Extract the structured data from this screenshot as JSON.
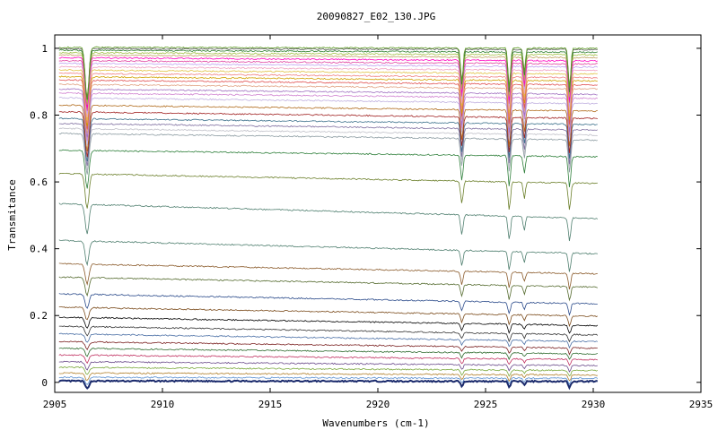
{
  "chart_data": {
    "type": "line",
    "title": "20090827_E02_130.JPG",
    "xlabel": "Wavenumbers (cm-1)",
    "ylabel": "Transmitance",
    "xlim": [
      2905,
      2935
    ],
    "ylim": [
      -0.03,
      1.04
    ],
    "x_ticks": [
      2905,
      2910,
      2915,
      2920,
      2925,
      2930,
      2935
    ],
    "y_ticks": [
      0,
      0.2,
      0.4,
      0.6,
      0.8,
      1
    ],
    "y_tick_labels": [
      "0",
      "0.2",
      "0.4",
      "0.6",
      "0.8",
      "1"
    ],
    "x_data_range": [
      2905.2,
      2930.2
    ],
    "grid": false,
    "legend": "none",
    "absorption_lines": [
      {
        "x": 2906.5,
        "width": 0.12,
        "strength": 0.15
      },
      {
        "x": 2923.9,
        "width": 0.08,
        "strength": 0.1
      },
      {
        "x": 2926.1,
        "width": 0.08,
        "strength": 0.12
      },
      {
        "x": 2926.8,
        "width": 0.07,
        "strength": 0.07
      },
      {
        "x": 2928.9,
        "width": 0.08,
        "strength": 0.12
      }
    ],
    "series": [
      {
        "color": "#1a2a6c",
        "start": 0.004,
        "end": 0.003
      },
      {
        "color": "#5a8fd0",
        "start": 0.015,
        "end": 0.012
      },
      {
        "color": "#b07f2a",
        "start": 0.028,
        "end": 0.022
      },
      {
        "color": "#7aa83c",
        "start": 0.045,
        "end": 0.035
      },
      {
        "color": "#6a4a8a",
        "start": 0.062,
        "end": 0.05
      },
      {
        "color": "#c03060",
        "start": 0.082,
        "end": 0.068
      },
      {
        "color": "#2e6b2e",
        "start": 0.102,
        "end": 0.085
      },
      {
        "color": "#7a2020",
        "start": 0.122,
        "end": 0.102
      },
      {
        "color": "#4a6fa5",
        "start": 0.145,
        "end": 0.122
      },
      {
        "color": "#333333",
        "start": 0.168,
        "end": 0.142
      },
      {
        "color": "#000000",
        "start": 0.195,
        "end": 0.17
      },
      {
        "color": "#7a4a1a",
        "start": 0.225,
        "end": 0.198
      },
      {
        "color": "#2a4a8a",
        "start": 0.265,
        "end": 0.235
      },
      {
        "color": "#556b2f",
        "start": 0.315,
        "end": 0.285
      },
      {
        "color": "#8a5a2a",
        "start": 0.355,
        "end": 0.325
      },
      {
        "color": "#4f7f6f",
        "start": 0.425,
        "end": 0.385
      },
      {
        "color": "#4f7f6f",
        "start": 0.535,
        "end": 0.49
      },
      {
        "color": "#6b7f2a",
        "start": 0.625,
        "end": 0.595
      },
      {
        "color": "#2e7f3a",
        "start": 0.695,
        "end": 0.675
      },
      {
        "color": "#8a9aa0",
        "start": 0.745,
        "end": 0.725
      },
      {
        "color": "#c0c0c8",
        "start": 0.76,
        "end": 0.74
      },
      {
        "color": "#7f6fa0",
        "start": 0.775,
        "end": 0.755
      },
      {
        "color": "#3a6f8a",
        "start": 0.79,
        "end": 0.772
      },
      {
        "color": "#a02020",
        "start": 0.81,
        "end": 0.79
      },
      {
        "color": "#b06a1a",
        "start": 0.83,
        "end": 0.812
      },
      {
        "color": "#c0b0e0",
        "start": 0.852,
        "end": 0.834
      },
      {
        "color": "#d080d0",
        "start": 0.866,
        "end": 0.85
      },
      {
        "color": "#a070c0",
        "start": 0.878,
        "end": 0.862
      },
      {
        "color": "#e0a080",
        "start": 0.892,
        "end": 0.878
      },
      {
        "color": "#e05050",
        "start": 0.905,
        "end": 0.89
      },
      {
        "color": "#d0a000",
        "start": 0.915,
        "end": 0.902
      },
      {
        "color": "#f08080",
        "start": 0.925,
        "end": 0.912
      },
      {
        "color": "#e0c040",
        "start": 0.935,
        "end": 0.923
      },
      {
        "color": "#f0a0c0",
        "start": 0.945,
        "end": 0.933
      },
      {
        "color": "#c0a0f0",
        "start": 0.955,
        "end": 0.944
      },
      {
        "color": "#e040a0",
        "start": 0.963,
        "end": 0.953
      },
      {
        "color": "#ff00c0",
        "start": 0.972,
        "end": 0.962
      },
      {
        "color": "#c0a060",
        "start": 0.98,
        "end": 0.972
      },
      {
        "color": "#a0c040",
        "start": 0.987,
        "end": 0.98
      },
      {
        "color": "#2e7f2e",
        "start": 0.994,
        "end": 0.988
      },
      {
        "color": "#606060",
        "start": 0.999,
        "end": 0.996
      },
      {
        "color": "#5a9a20",
        "start": 1.003,
        "end": 1.0
      }
    ]
  }
}
